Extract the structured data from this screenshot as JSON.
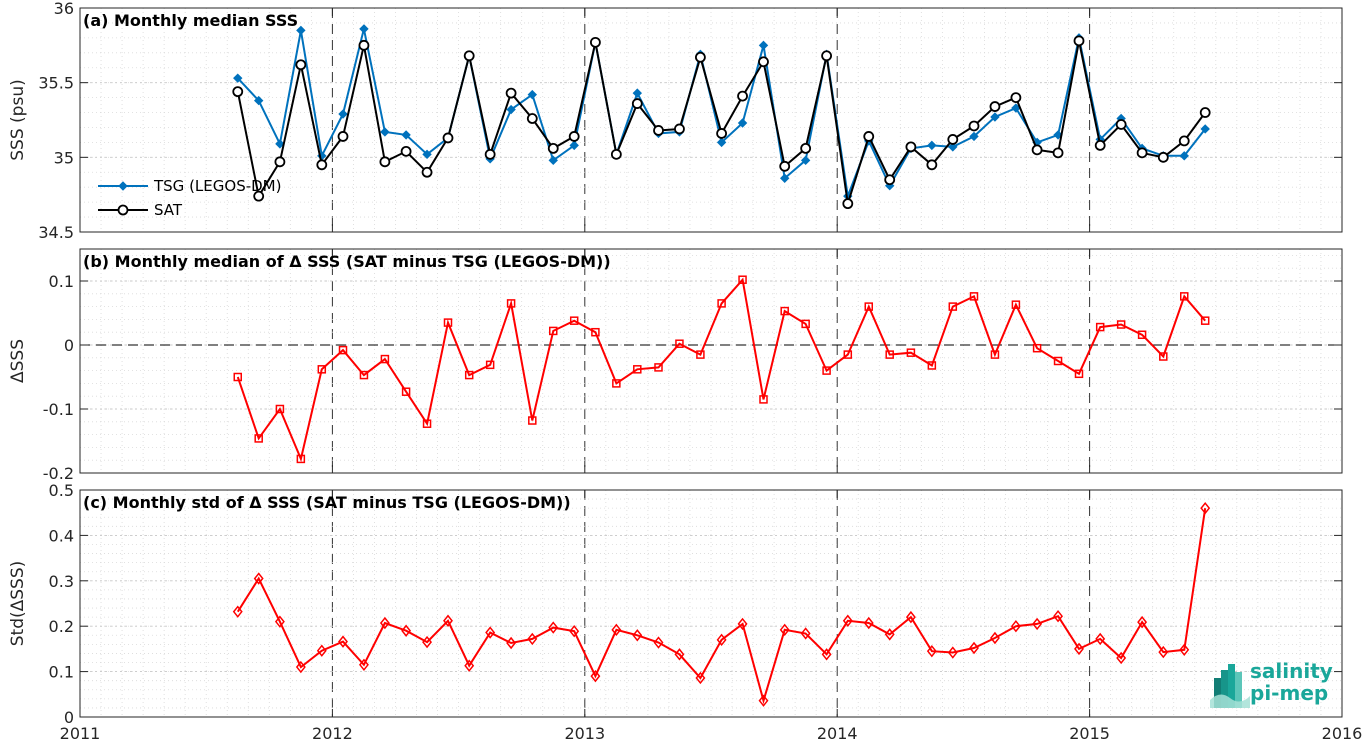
{
  "chart_data": [
    {
      "type": "line",
      "title": "(a) Monthly median SSS",
      "ylabel": "SSS (psu)",
      "xlabel": "",
      "xlim": [
        2011,
        2016
      ],
      "ylim": [
        34.5,
        36
      ],
      "yticks": [
        "34.5",
        "35",
        "35.5",
        "36"
      ],
      "grid": true,
      "legend": "left",
      "x": [
        2011.625,
        2011.708,
        2011.792,
        2011.875,
        2011.958,
        2012.042,
        2012.125,
        2012.208,
        2012.292,
        2012.375,
        2012.458,
        2012.542,
        2012.625,
        2012.708,
        2012.792,
        2012.875,
        2012.958,
        2013.042,
        2013.125,
        2013.208,
        2013.292,
        2013.375,
        2013.458,
        2013.542,
        2013.625,
        2013.708,
        2013.792,
        2013.875,
        2013.958,
        2014.042,
        2014.125,
        2014.208,
        2014.292,
        2014.375,
        2014.458,
        2014.542,
        2014.625,
        2014.708,
        2014.792,
        2014.875,
        2014.958,
        2015.042,
        2015.125,
        2015.208,
        2015.292,
        2015.375,
        2015.458
      ],
      "series": [
        {
          "name": "TSG (LEGOS-DM)",
          "color": "#0072BD",
          "marker": "diamond-filled",
          "values": [
            35.53,
            35.38,
            35.09,
            35.85,
            35.01,
            35.29,
            35.86,
            35.17,
            35.15,
            35.02,
            35.13,
            35.68,
            34.99,
            35.32,
            35.42,
            34.98,
            35.08,
            35.77,
            35.02,
            35.43,
            35.16,
            35.17,
            35.69,
            35.1,
            35.23,
            35.75,
            34.86,
            34.98,
            35.69,
            34.74,
            35.11,
            34.81,
            35.06,
            35.08,
            35.07,
            35.14,
            35.27,
            35.33,
            35.1,
            35.15,
            35.8,
            35.12,
            35.26,
            35.06,
            35.01,
            35.01,
            35.19
          ]
        },
        {
          "name": "SAT",
          "color": "#000000",
          "marker": "circle-open",
          "values": [
            35.44,
            34.74,
            34.97,
            35.62,
            34.95,
            35.14,
            35.75,
            34.97,
            35.04,
            34.9,
            35.13,
            35.68,
            35.02,
            35.43,
            35.26,
            35.06,
            35.14,
            35.77,
            35.02,
            35.36,
            35.18,
            35.19,
            35.67,
            35.16,
            35.41,
            35.64,
            34.94,
            35.06,
            35.68,
            34.69,
            35.14,
            34.85,
            35.07,
            34.95,
            35.12,
            35.21,
            35.34,
            35.4,
            35.05,
            35.03,
            35.78,
            35.08,
            35.22,
            35.03,
            35.0,
            35.11,
            35.3
          ]
        }
      ]
    },
    {
      "type": "line",
      "title": "(b) Monthly median of Δ SSS (SAT minus TSG (LEGOS-DM))",
      "ylabel": "ΔSSS",
      "xlabel": "",
      "xlim": [
        2011,
        2016
      ],
      "ylim": [
        -0.2,
        0.15
      ],
      "yticks": [
        "-0.2",
        "-0.1",
        "0",
        "0.1"
      ],
      "grid": true,
      "reference_line": 0,
      "x": [
        2011.625,
        2011.708,
        2011.792,
        2011.875,
        2011.958,
        2012.042,
        2012.125,
        2012.208,
        2012.292,
        2012.375,
        2012.458,
        2012.542,
        2012.625,
        2012.708,
        2012.792,
        2012.875,
        2012.958,
        2013.042,
        2013.125,
        2013.208,
        2013.292,
        2013.375,
        2013.458,
        2013.542,
        2013.625,
        2013.708,
        2013.792,
        2013.875,
        2013.958,
        2014.042,
        2014.125,
        2014.208,
        2014.292,
        2014.375,
        2014.458,
        2014.542,
        2014.625,
        2014.708,
        2014.792,
        2014.875,
        2014.958,
        2015.042,
        2015.125,
        2015.208,
        2015.292,
        2015.375,
        2015.458
      ],
      "series": [
        {
          "name": "",
          "color": "#FF0000",
          "marker": "square-open",
          "values": [
            -0.05,
            -0.146,
            -0.1,
            -0.178,
            -0.038,
            -0.008,
            -0.047,
            -0.022,
            -0.073,
            -0.123,
            0.035,
            -0.047,
            -0.031,
            0.065,
            -0.118,
            0.022,
            0.038,
            0.02,
            -0.06,
            -0.038,
            -0.035,
            0.002,
            -0.015,
            0.065,
            0.102,
            -0.085,
            0.053,
            0.033,
            -0.04,
            -0.015,
            0.06,
            -0.015,
            -0.012,
            -0.032,
            0.06,
            0.076,
            -0.015,
            0.063,
            -0.005,
            -0.025,
            -0.045,
            0.028,
            0.032,
            0.016,
            -0.018,
            0.076,
            0.038
          ]
        }
      ]
    },
    {
      "type": "line",
      "title": "(c) Monthly std of Δ SSS (SAT minus TSG (LEGOS-DM))",
      "ylabel": "Std(ΔSSS)",
      "xlabel": "",
      "xlim": [
        2011,
        2016
      ],
      "ylim": [
        0,
        0.5
      ],
      "yticks": [
        "0",
        "0.1",
        "0.2",
        "0.3",
        "0.4",
        "0.5"
      ],
      "xticks": [
        "2011",
        "2012",
        "2013",
        "2014",
        "2015",
        "2016"
      ],
      "grid": true,
      "x": [
        2011.625,
        2011.708,
        2011.792,
        2011.875,
        2011.958,
        2012.042,
        2012.125,
        2012.208,
        2012.292,
        2012.375,
        2012.458,
        2012.542,
        2012.625,
        2012.708,
        2012.792,
        2012.875,
        2012.958,
        2013.042,
        2013.125,
        2013.208,
        2013.292,
        2013.375,
        2013.458,
        2013.542,
        2013.625,
        2013.708,
        2013.792,
        2013.875,
        2013.958,
        2014.042,
        2014.125,
        2014.208,
        2014.292,
        2014.375,
        2014.458,
        2014.542,
        2014.625,
        2014.708,
        2014.792,
        2014.875,
        2014.958,
        2015.042,
        2015.125,
        2015.208,
        2015.292,
        2015.375,
        2015.458
      ],
      "series": [
        {
          "name": "",
          "color": "#FF0000",
          "marker": "diamond-open",
          "values": [
            0.232,
            0.305,
            0.21,
            0.11,
            0.146,
            0.166,
            0.115,
            0.207,
            0.19,
            0.165,
            0.212,
            0.113,
            0.186,
            0.163,
            0.172,
            0.197,
            0.189,
            0.09,
            0.192,
            0.18,
            0.164,
            0.138,
            0.086,
            0.17,
            0.205,
            0.036,
            0.192,
            0.184,
            0.138,
            0.212,
            0.207,
            0.182,
            0.22,
            0.145,
            0.142,
            0.152,
            0.174,
            0.2,
            0.205,
            0.222,
            0.15,
            0.172,
            0.13,
            0.209,
            0.143,
            0.148,
            0.46
          ]
        }
      ]
    }
  ],
  "logo": {
    "line1": "salinity",
    "line2": "pi-mep",
    "color": "#1aa79a"
  }
}
